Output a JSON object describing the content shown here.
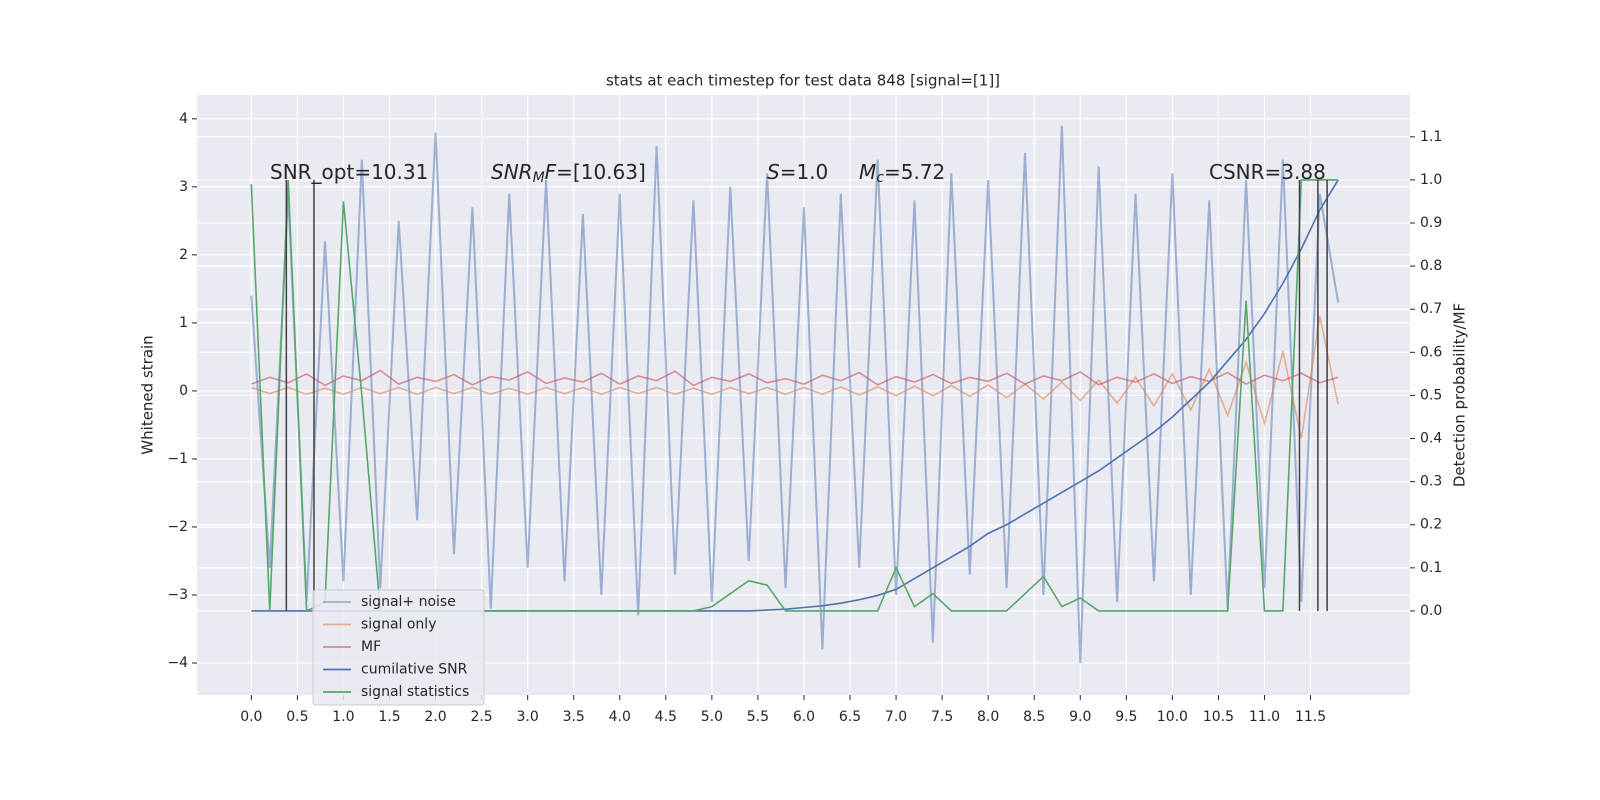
{
  "chart_data": {
    "type": "line",
    "title": "stats at each timestep for test data 848 [signal=[1]]",
    "ylabel": "Whitened strain",
    "y2label": "Detection probability/MF",
    "grid": true,
    "legend": "lower left",
    "xlim": [
      -0.59,
      12.58
    ],
    "ylim": [
      -4.47,
      4.35
    ],
    "y2lim": [
      -0.195,
      1.197
    ],
    "xticks": [
      {
        "value": 0,
        "label": "0.0"
      },
      {
        "value": 0.5,
        "label": "0.5"
      },
      {
        "value": 1,
        "label": "1.0"
      },
      {
        "value": 1.5,
        "label": "1.5"
      },
      {
        "value": 2,
        "label": "2.0"
      },
      {
        "value": 2.5,
        "label": "2.5"
      },
      {
        "value": 3,
        "label": "3.0"
      },
      {
        "value": 3.5,
        "label": "3.5"
      },
      {
        "value": 4,
        "label": "4.0"
      },
      {
        "value": 4.5,
        "label": "4.5"
      },
      {
        "value": 5,
        "label": "5.0"
      },
      {
        "value": 5.5,
        "label": "5.5"
      },
      {
        "value": 6,
        "label": "6.0"
      },
      {
        "value": 6.5,
        "label": "6.5"
      },
      {
        "value": 7,
        "label": "7.0"
      },
      {
        "value": 7.5,
        "label": "7.5"
      },
      {
        "value": 8,
        "label": "8.0"
      },
      {
        "value": 8.5,
        "label": "8.5"
      },
      {
        "value": 9,
        "label": "9.0"
      },
      {
        "value": 9.5,
        "label": "9.5"
      },
      {
        "value": 10,
        "label": "10.0"
      },
      {
        "value": 10.5,
        "label": "10.5"
      },
      {
        "value": 11,
        "label": "11.0"
      },
      {
        "value": 11.5,
        "label": "11.5"
      }
    ],
    "yticks": [
      {
        "value": -4,
        "label": "−4"
      },
      {
        "value": -3,
        "label": "−3"
      },
      {
        "value": -2,
        "label": "−2"
      },
      {
        "value": -1,
        "label": "−1"
      },
      0,
      1,
      2,
      3,
      4
    ],
    "y2ticks": [
      {
        "value": 0,
        "label": "0.0"
      },
      {
        "value": 0.1,
        "label": "0.1"
      },
      {
        "value": 0.2,
        "label": "0.2"
      },
      {
        "value": 0.3,
        "label": "0.3"
      },
      {
        "value": 0.4,
        "label": "0.4"
      },
      {
        "value": 0.5,
        "label": "0.5"
      },
      {
        "value": 0.6,
        "label": "0.6"
      },
      {
        "value": 0.7,
        "label": "0.7"
      },
      {
        "value": 0.8,
        "label": "0.8"
      },
      {
        "value": 0.9,
        "label": "0.9"
      },
      {
        "value": 1,
        "label": "1.0"
      },
      {
        "value": 1.1,
        "label": "1.1"
      }
    ],
    "annotations": [
      [
        {
          "text": "SNR_opt=10.31",
          "style": "normal"
        }
      ],
      [
        {
          "text": "SNR",
          "style": "italic"
        },
        {
          "text": "M",
          "style": "sub"
        },
        {
          "text": "F",
          "style": "italic"
        },
        {
          "text": "=[10.63]",
          "style": "normal"
        }
      ],
      [
        {
          "text": "S",
          "style": "italic"
        },
        {
          "text": "=1.0",
          "style": "normal"
        }
      ],
      [
        {
          "text": "M",
          "style": "italic"
        },
        {
          "text": "c",
          "style": "sub"
        },
        {
          "text": "=5.72",
          "style": "normal"
        }
      ],
      [
        {
          "text": "CSNR=3.88",
          "style": "normal"
        }
      ]
    ],
    "vlines": [
      0.38,
      0.68,
      11.38,
      11.58,
      11.68
    ],
    "vline_color": "#404040",
    "x": [
      0,
      0.2,
      0.4,
      0.6,
      0.8,
      1,
      1.2,
      1.4,
      1.6,
      1.8,
      2,
      2.2,
      2.4,
      2.6,
      2.8,
      3,
      3.2,
      3.4,
      3.6,
      3.8,
      4,
      4.2,
      4.4,
      4.6,
      4.8,
      5,
      5.2,
      5.4,
      5.6,
      5.8,
      6,
      6.2,
      6.4,
      6.6,
      6.8,
      7,
      7.2,
      7.4,
      7.6,
      7.8,
      8,
      8.2,
      8.4,
      8.6,
      8.8,
      9,
      9.2,
      9.4,
      9.6,
      9.8,
      10,
      10.2,
      10.4,
      10.6,
      10.8,
      11,
      11.2,
      11.4,
      11.6,
      11.8
    ],
    "series": [
      {
        "name": "signal+ noise",
        "color": "#4c72b0",
        "opacity": 0.5,
        "axis": "y",
        "values": [
          1.4,
          -2.6,
          2.9,
          -3.1,
          2.2,
          -2.8,
          3.4,
          -2.9,
          2.5,
          -1.9,
          3.8,
          -2.4,
          2.7,
          -3.2,
          2.9,
          -2.6,
          3.1,
          -2.8,
          2.6,
          -3.0,
          2.9,
          -3.3,
          3.6,
          -2.7,
          2.8,
          -3.1,
          3.0,
          -2.5,
          3.2,
          -2.9,
          2.7,
          -3.8,
          2.9,
          -2.6,
          3.4,
          -3.0,
          2.8,
          -3.7,
          3.2,
          -2.7,
          3.1,
          -2.9,
          3.5,
          -3.0,
          3.9,
          -4.0,
          3.3,
          -3.1,
          2.9,
          -2.8,
          3.2,
          -3.0,
          2.8,
          -3.2,
          3.1,
          -2.9,
          3.4,
          -3.1,
          2.9,
          1.3
        ]
      },
      {
        "name": "signal only",
        "color": "#dd8452",
        "opacity": 0.6,
        "axis": "y",
        "values": [
          0.05,
          -0.04,
          0.05,
          -0.05,
          0.04,
          -0.05,
          0.05,
          -0.04,
          0.05,
          -0.05,
          0.05,
          -0.04,
          0.05,
          -0.05,
          0.04,
          -0.05,
          0.05,
          -0.04,
          0.05,
          -0.05,
          0.05,
          -0.04,
          0.05,
          -0.05,
          0.04,
          -0.05,
          0.05,
          -0.04,
          0.05,
          -0.05,
          0.05,
          -0.05,
          0.06,
          -0.06,
          0.06,
          -0.07,
          0.07,
          -0.07,
          0.08,
          -0.08,
          0.09,
          -0.1,
          0.1,
          -0.12,
          0.13,
          -0.14,
          0.16,
          -0.18,
          0.2,
          -0.22,
          0.25,
          -0.28,
          0.32,
          -0.36,
          0.42,
          -0.48,
          0.58,
          -0.7,
          1.1,
          -0.2
        ]
      },
      {
        "name": "MF",
        "color": "#c44e52",
        "opacity": 0.6,
        "axis": "y",
        "values": [
          0.1,
          0.2,
          0.12,
          0.25,
          0.08,
          0.22,
          0.15,
          0.3,
          0.1,
          0.2,
          0.14,
          0.24,
          0.09,
          0.21,
          0.16,
          0.28,
          0.11,
          0.19,
          0.13,
          0.26,
          0.1,
          0.22,
          0.15,
          0.29,
          0.08,
          0.2,
          0.14,
          0.25,
          0.12,
          0.18,
          0.1,
          0.23,
          0.15,
          0.27,
          0.09,
          0.21,
          0.13,
          0.24,
          0.11,
          0.2,
          0.14,
          0.26,
          0.1,
          0.22,
          0.15,
          0.28,
          0.09,
          0.2,
          0.13,
          0.25,
          0.11,
          0.21,
          0.14,
          0.27,
          0.1,
          0.23,
          0.15,
          0.26,
          0.12,
          0.2
        ]
      },
      {
        "name": "cumilative SNR",
        "color": "#4c72b0",
        "opacity": 1,
        "axis": "y2",
        "values": [
          0,
          0,
          0,
          0,
          0,
          0,
          0,
          0,
          0,
          0,
          0,
          0,
          0,
          0,
          0,
          0,
          0,
          0,
          0,
          0,
          0,
          0,
          0,
          0,
          0,
          0,
          0,
          0,
          0.002,
          0.004,
          0.008,
          0.012,
          0.018,
          0.026,
          0.036,
          0.05,
          0.075,
          0.1,
          0.125,
          0.15,
          0.18,
          0.2,
          0.225,
          0.25,
          0.275,
          0.3,
          0.325,
          0.355,
          0.385,
          0.415,
          0.45,
          0.49,
          0.53,
          0.58,
          0.63,
          0.69,
          0.76,
          0.84,
          0.93,
          1.0
        ]
      },
      {
        "name": "signal statistics",
        "color": "#55a868",
        "opacity": 1,
        "axis": "y2",
        "values": [
          0.99,
          0.0,
          1.0,
          0.0,
          0.02,
          0.95,
          0.5,
          0.0,
          0,
          0,
          0,
          0,
          0,
          0,
          0,
          0,
          0,
          0,
          0,
          0,
          0,
          0,
          0,
          0,
          0.0,
          0.01,
          0.04,
          0.07,
          0.06,
          0.0,
          0,
          0,
          0,
          0,
          0,
          0.1,
          0.01,
          0.04,
          0.0,
          0,
          0,
          0,
          0.04,
          0.08,
          0.01,
          0.03,
          0.0,
          0,
          0,
          0,
          0,
          0,
          0,
          0,
          0.72,
          0.0,
          0.0,
          1.0,
          1.0,
          1.0
        ]
      }
    ]
  }
}
